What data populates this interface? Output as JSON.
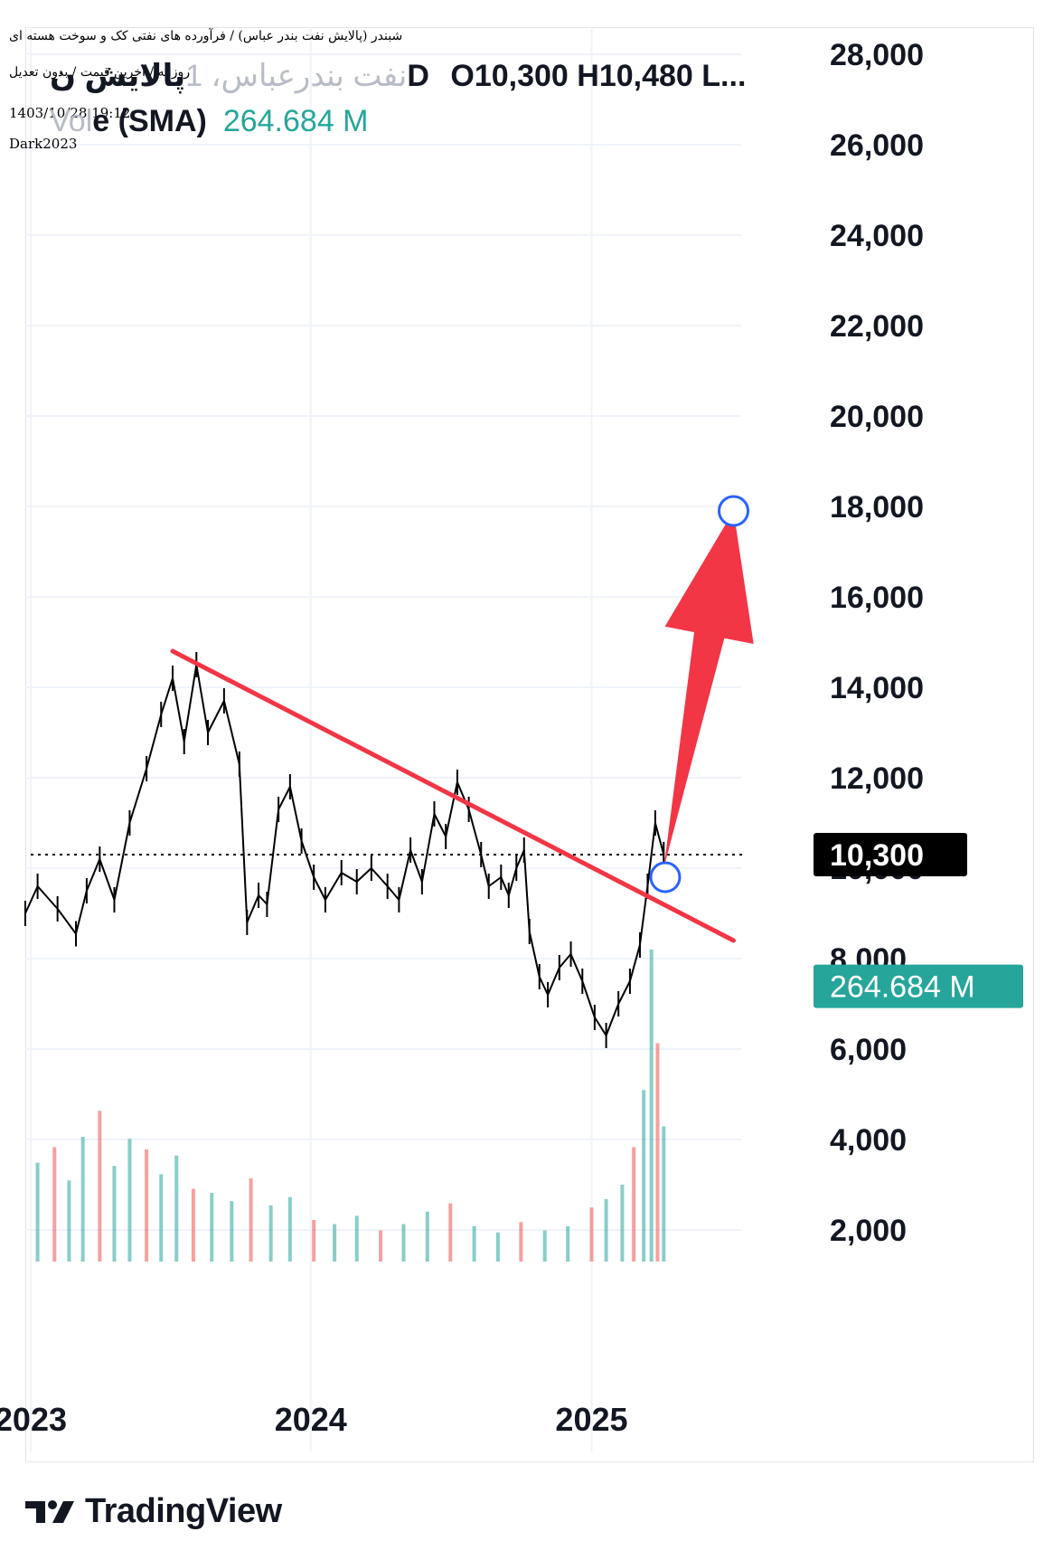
{
  "meta": {
    "title": "شبندر (پالایش نفت بندر عباس) / فرآورده های نفتی کک و سوخت هسته ای",
    "subtitle": "روزانه / آخرین قیمت / بدون تعدیل",
    "date": "1403/10/28 19:12",
    "author": "Dark2023"
  },
  "legend": {
    "symbol_ghost": "نفت بندرعباس، 1",
    "symbol": "پالایش ن",
    "interval": "D",
    "ohlc_text": "O10,300  H10,480  L...",
    "volume_ghost": "Vol",
    "volume_label": "e (SMA)",
    "volume_value": "264.684 M"
  },
  "branding": {
    "name": "TradingView"
  },
  "colors": {
    "trendline": "#f23645",
    "arrow": "#f23645",
    "handle_stroke": "#2962ff",
    "price_tag_bg": "#000000",
    "volume_tag_bg": "#26a69a",
    "volume_up": "#26a69a",
    "volume_down": "#ef5350",
    "grid": "#f0f3fa",
    "candles": "#000000"
  },
  "chart_data": {
    "type": "line",
    "subtype": "daily-ohlc-with-volume",
    "y_axis": {
      "ticks": [
        "2,000",
        "4,000",
        "6,000",
        "8,000",
        "10,000",
        "12,000",
        "14,000",
        "16,000",
        "18,000",
        "20,000",
        "22,000",
        "24,000",
        "26,000",
        "28,000"
      ],
      "tick_values": [
        2000,
        4000,
        6000,
        8000,
        10000,
        12000,
        14000,
        16000,
        18000,
        20000,
        22000,
        24000,
        26000,
        28000
      ],
      "range": [
        1300,
        28600
      ]
    },
    "x_axis": {
      "ticks": [
        "2023",
        "2024",
        "2025"
      ],
      "tick_dates": [
        "2023-01-01",
        "2024-01-01",
        "2025-01-01"
      ],
      "range": [
        "2022-12-25",
        "2025-07-15"
      ]
    },
    "last_price": {
      "value": 10300,
      "label": "10,300"
    },
    "volume_sma": {
      "value": 264.684,
      "unit": "M",
      "label": "264.684 M"
    },
    "price_path": [
      {
        "date": "2022-12-25",
        "close": 9000
      },
      {
        "date": "2023-01-10",
        "close": 9600
      },
      {
        "date": "2023-02-05",
        "close": 9100
      },
      {
        "date": "2023-03-01",
        "close": 8550
      },
      {
        "date": "2023-03-15",
        "close": 9500
      },
      {
        "date": "2023-04-01",
        "close": 10200
      },
      {
        "date": "2023-04-20",
        "close": 9300
      },
      {
        "date": "2023-05-10",
        "close": 11000
      },
      {
        "date": "2023-06-01",
        "close": 12200
      },
      {
        "date": "2023-06-20",
        "close": 13400
      },
      {
        "date": "2023-07-05",
        "close": 14200
      },
      {
        "date": "2023-07-20",
        "close": 12800
      },
      {
        "date": "2023-08-05",
        "close": 14500
      },
      {
        "date": "2023-08-20",
        "close": 13000
      },
      {
        "date": "2023-09-10",
        "close": 13700
      },
      {
        "date": "2023-09-30",
        "close": 12300
      },
      {
        "date": "2023-10-10",
        "close": 8800
      },
      {
        "date": "2023-10-25",
        "close": 9400
      },
      {
        "date": "2023-11-05",
        "close": 9200
      },
      {
        "date": "2023-11-20",
        "close": 11300
      },
      {
        "date": "2023-12-05",
        "close": 11800
      },
      {
        "date": "2023-12-20",
        "close": 10600
      },
      {
        "date": "2024-01-05",
        "close": 9800
      },
      {
        "date": "2024-01-20",
        "close": 9300
      },
      {
        "date": "2024-02-10",
        "close": 9900
      },
      {
        "date": "2024-03-01",
        "close": 9700
      },
      {
        "date": "2024-03-20",
        "close": 10000
      },
      {
        "date": "2024-04-10",
        "close": 9600
      },
      {
        "date": "2024-04-25",
        "close": 9300
      },
      {
        "date": "2024-05-10",
        "close": 10400
      },
      {
        "date": "2024-05-25",
        "close": 9700
      },
      {
        "date": "2024-06-10",
        "close": 11200
      },
      {
        "date": "2024-06-25",
        "close": 10700
      },
      {
        "date": "2024-07-10",
        "close": 11900
      },
      {
        "date": "2024-07-25",
        "close": 11300
      },
      {
        "date": "2024-08-10",
        "close": 10300
      },
      {
        "date": "2024-08-20",
        "close": 9600
      },
      {
        "date": "2024-09-05",
        "close": 9800
      },
      {
        "date": "2024-09-15",
        "close": 9400
      },
      {
        "date": "2024-09-25",
        "close": 10000
      },
      {
        "date": "2024-10-05",
        "close": 10400
      },
      {
        "date": "2024-10-12",
        "close": 8600
      },
      {
        "date": "2024-10-25",
        "close": 7600
      },
      {
        "date": "2024-11-05",
        "close": 7200
      },
      {
        "date": "2024-11-20",
        "close": 7800
      },
      {
        "date": "2024-12-05",
        "close": 8100
      },
      {
        "date": "2024-12-20",
        "close": 7500
      },
      {
        "date": "2025-01-05",
        "close": 6700
      },
      {
        "date": "2025-01-20",
        "close": 6300
      },
      {
        "date": "2025-02-05",
        "close": 7000
      },
      {
        "date": "2025-02-20",
        "close": 7500
      },
      {
        "date": "2025-03-05",
        "close": 8300
      },
      {
        "date": "2025-03-15",
        "close": 9600
      },
      {
        "date": "2025-03-25",
        "close": 11000
      },
      {
        "date": "2025-04-05",
        "close": 10300
      }
    ],
    "trendline": {
      "start": {
        "date": "2023-07-05",
        "value": 14800
      },
      "end": {
        "date": "2025-07-05",
        "value": 8400
      }
    },
    "arrow": {
      "from": {
        "date": "2025-04-05",
        "value": 10000
      },
      "to": {
        "date": "2025-07-05",
        "value": 17900
      }
    },
    "handles": [
      {
        "date": "2025-04-07",
        "value": 9800
      },
      {
        "date": "2025-07-05",
        "value": 17900
      }
    ],
    "volume_bars_millions": [
      {
        "date": "2023-01-10",
        "value": 95
      },
      {
        "date": "2023-02-01",
        "value": 110
      },
      {
        "date": "2023-02-20",
        "value": 78
      },
      {
        "date": "2023-03-10",
        "value": 120
      },
      {
        "date": "2023-04-01",
        "value": 145
      },
      {
        "date": "2023-04-20",
        "value": 92
      },
      {
        "date": "2023-05-10",
        "value": 118
      },
      {
        "date": "2023-06-01",
        "value": 108
      },
      {
        "date": "2023-06-20",
        "value": 84
      },
      {
        "date": "2023-07-10",
        "value": 102
      },
      {
        "date": "2023-08-01",
        "value": 70
      },
      {
        "date": "2023-08-25",
        "value": 66
      },
      {
        "date": "2023-09-20",
        "value": 58
      },
      {
        "date": "2023-10-15",
        "value": 80
      },
      {
        "date": "2023-11-10",
        "value": 54
      },
      {
        "date": "2023-12-05",
        "value": 62
      },
      {
        "date": "2024-01-05",
        "value": 40
      },
      {
        "date": "2024-02-01",
        "value": 36
      },
      {
        "date": "2024-03-01",
        "value": 44
      },
      {
        "date": "2024-04-01",
        "value": 30
      },
      {
        "date": "2024-05-01",
        "value": 36
      },
      {
        "date": "2024-06-01",
        "value": 48
      },
      {
        "date": "2024-07-01",
        "value": 56
      },
      {
        "date": "2024-08-01",
        "value": 34
      },
      {
        "date": "2024-09-01",
        "value": 28
      },
      {
        "date": "2024-10-01",
        "value": 38
      },
      {
        "date": "2024-11-01",
        "value": 30
      },
      {
        "date": "2024-12-01",
        "value": 34
      },
      {
        "date": "2025-01-01",
        "value": 52
      },
      {
        "date": "2025-01-20",
        "value": 60
      },
      {
        "date": "2025-02-10",
        "value": 74
      },
      {
        "date": "2025-02-25",
        "value": 110
      },
      {
        "date": "2025-03-10",
        "value": 165
      },
      {
        "date": "2025-03-20",
        "value": 300
      },
      {
        "date": "2025-03-28",
        "value": 210
      },
      {
        "date": "2025-04-05",
        "value": 130
      }
    ]
  }
}
